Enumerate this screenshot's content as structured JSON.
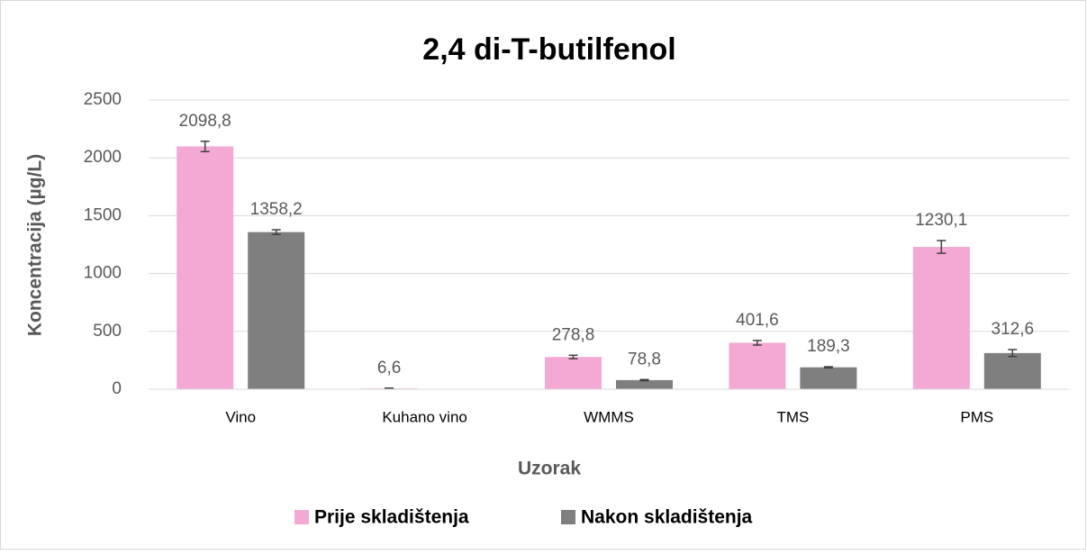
{
  "chart_data": {
    "type": "bar",
    "title": "2,4 di-T-butilfenol",
    "x_label": "Uzorak",
    "y_label": "Koncentracija (µg/L)",
    "categories": [
      "Vino",
      "Kuhano vino",
      "WMMS",
      "TMS",
      "PMS"
    ],
    "series": [
      {
        "name": "Prije skladištenja",
        "color": "#f4a9d4",
        "values": [
          2098.8,
          6.6,
          278.8,
          401.6,
          1230.1
        ],
        "value_labels": [
          "2098,8",
          "6,6",
          "278,8",
          "401,6",
          "1230,1"
        ],
        "errors": [
          45,
          3,
          15,
          20,
          55
        ]
      },
      {
        "name": "Nakon skladištenja",
        "color": "#7f7f7f",
        "values": [
          1358.2,
          null,
          78.8,
          189.3,
          312.6
        ],
        "value_labels": [
          "1358,2",
          null,
          "78,8",
          "189,3",
          "312,6"
        ],
        "errors": [
          20,
          null,
          5,
          5,
          30
        ]
      }
    ],
    "ylim": [
      0,
      2500
    ],
    "yticks": [
      0,
      500,
      1000,
      1500,
      2000,
      2500
    ],
    "grid": true,
    "legend": "bottom"
  }
}
